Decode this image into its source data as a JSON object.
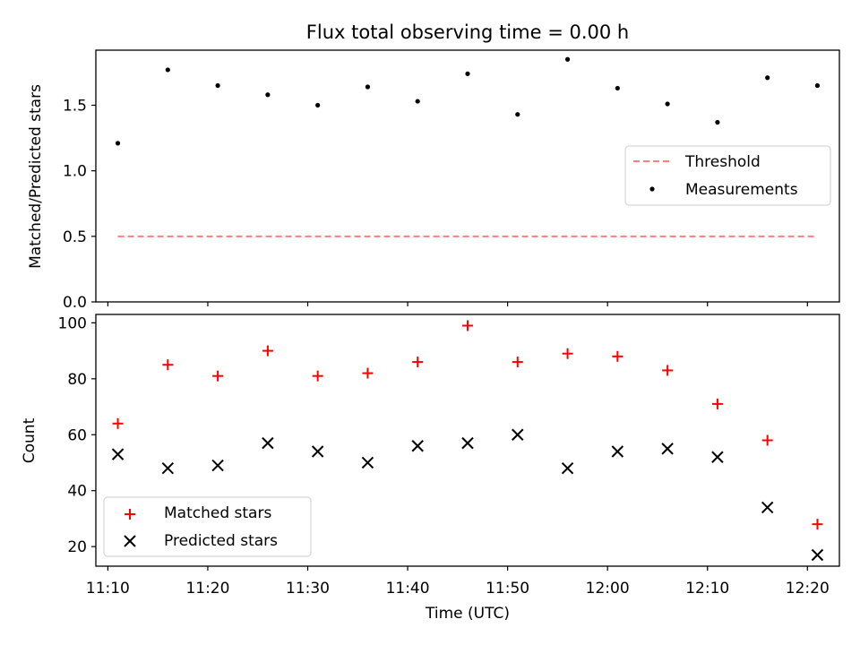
{
  "chart_data": [
    {
      "type": "scatter",
      "title": "Flux total observing time = 0.00 h",
      "xlabel": "",
      "ylabel": "Matched/Predicted stars",
      "ylim": [
        0.0,
        1.92
      ],
      "y_ticks": [
        0.0,
        0.5,
        1.0,
        1.5
      ],
      "y_tick_labels": [
        "0.0",
        "0.5",
        "1.0",
        "1.5"
      ],
      "x_minutes": [
        11,
        16,
        21,
        26,
        31,
        36,
        41,
        46,
        51,
        56,
        61,
        66,
        71,
        76,
        81
      ],
      "series": [
        {
          "name": "Threshold",
          "style": "dashed-line",
          "color": "#ff7f7f",
          "values": [
            0.5,
            0.5,
            0.5,
            0.5,
            0.5,
            0.5,
            0.5,
            0.5,
            0.5,
            0.5,
            0.5,
            0.5,
            0.5,
            0.5,
            0.5
          ]
        },
        {
          "name": "Measurements",
          "style": "dot",
          "color": "#000000",
          "values": [
            1.21,
            1.77,
            1.65,
            1.58,
            1.5,
            1.64,
            1.53,
            1.74,
            1.43,
            1.85,
            1.63,
            1.51,
            1.37,
            1.71,
            1.65
          ]
        }
      ],
      "legend": {
        "location": "center-right",
        "entries": [
          "Threshold",
          "Measurements"
        ]
      }
    },
    {
      "type": "scatter",
      "xlabel": "Time (UTC)",
      "ylabel": "Count",
      "xlim_minutes": [
        8.8,
        83.2
      ],
      "ylim": [
        13,
        103
      ],
      "x_ticks_minutes": [
        10,
        20,
        30,
        40,
        50,
        60,
        70,
        80
      ],
      "x_tick_labels": [
        "11:10",
        "11:20",
        "11:30",
        "11:40",
        "11:50",
        "12:00",
        "12:10",
        "12:20"
      ],
      "y_ticks": [
        20,
        40,
        60,
        80,
        100
      ],
      "y_tick_labels": [
        "20",
        "40",
        "60",
        "80",
        "100"
      ],
      "x_minutes": [
        11,
        16,
        21,
        26,
        31,
        36,
        41,
        46,
        51,
        56,
        61,
        66,
        71,
        76,
        81
      ],
      "series": [
        {
          "name": "Matched stars",
          "marker": "plus",
          "color": "#ff0000",
          "values": [
            64,
            85,
            81,
            90,
            81,
            82,
            86,
            99,
            86,
            89,
            88,
            83,
            71,
            58,
            28
          ]
        },
        {
          "name": "Predicted stars",
          "marker": "x",
          "color": "#000000",
          "values": [
            53,
            48,
            49,
            57,
            54,
            50,
            56,
            57,
            60,
            48,
            54,
            55,
            52,
            34,
            17
          ]
        }
      ],
      "legend": {
        "location": "lower-left",
        "entries": [
          "Matched stars",
          "Predicted stars"
        ]
      }
    }
  ]
}
